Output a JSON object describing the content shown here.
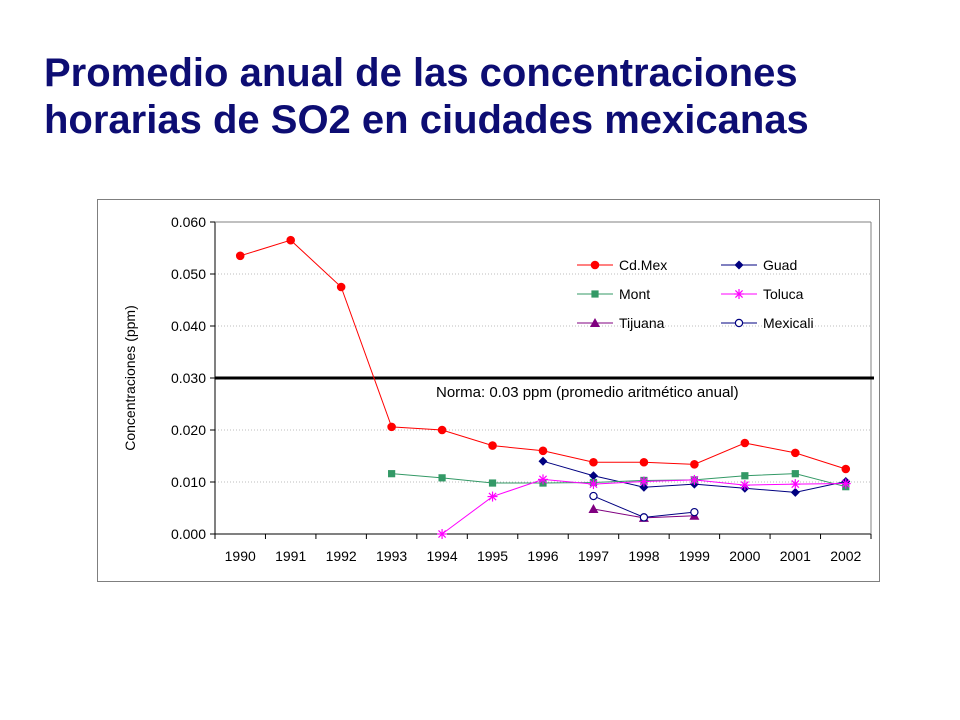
{
  "slide": {
    "title_line1": "Promedio anual de las concentraciones",
    "title_line2": "horarias de SO2 en ciudades mexicanas"
  },
  "chart_data": {
    "type": "line",
    "title": "",
    "xlabel": "",
    "ylabel": "Concentraciones (ppm)",
    "categories": [
      "1990",
      "1991",
      "1992",
      "1993",
      "1994",
      "1995",
      "1996",
      "1997",
      "1998",
      "1999",
      "2000",
      "2001",
      "2002"
    ],
    "ylim": [
      0,
      0.06
    ],
    "yticks": [
      "0.000",
      "0.010",
      "0.020",
      "0.030",
      "0.040",
      "0.050",
      "0.060"
    ],
    "grid": true,
    "legend_position": "top-right",
    "reference_line": {
      "value": 0.03,
      "label": "Norma: 0.03 ppm (promedio aritmético anual)"
    },
    "series": [
      {
        "name": "Cd.Mex",
        "color": "#ff0000",
        "marker": "circle",
        "values": [
          0.0535,
          0.0565,
          0.0475,
          0.0206,
          0.02,
          0.017,
          0.016,
          0.0138,
          0.0138,
          0.0134,
          0.0175,
          0.0156,
          0.0125
        ]
      },
      {
        "name": "Guad",
        "color": "#000080",
        "marker": "diamond",
        "values": [
          null,
          null,
          null,
          null,
          null,
          null,
          0.014,
          0.0112,
          0.009,
          0.0096,
          0.0088,
          0.008,
          0.0101
        ]
      },
      {
        "name": "Mont",
        "color": "#339966",
        "marker": "square",
        "values": [
          null,
          null,
          null,
          0.0116,
          0.0108,
          0.0098,
          0.0098,
          0.0099,
          0.0103,
          0.0104,
          0.0112,
          0.0116,
          0.0091
        ]
      },
      {
        "name": "Toluca",
        "color": "#ff00ff",
        "marker": "star",
        "values": [
          null,
          null,
          null,
          null,
          0.0,
          0.0072,
          0.0105,
          0.0096,
          0.0101,
          0.0104,
          0.0094,
          0.0096,
          0.0097
        ]
      },
      {
        "name": "Tijuana",
        "color": "#800080",
        "marker": "triangle",
        "values": [
          null,
          null,
          null,
          null,
          null,
          null,
          null,
          0.0048,
          0.0031,
          0.0035,
          null,
          null,
          null
        ]
      },
      {
        "name": "Mexicali",
        "color": "#000080",
        "marker": "open-circle",
        "values": [
          null,
          null,
          null,
          null,
          null,
          null,
          null,
          0.0073,
          0.0032,
          0.0042,
          null,
          null,
          null
        ]
      }
    ]
  }
}
